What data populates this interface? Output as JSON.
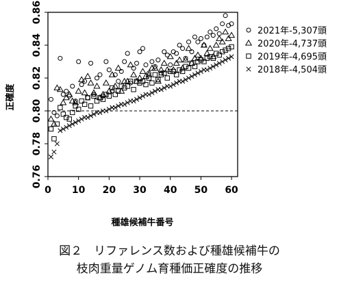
{
  "figure": {
    "caption_line1": "図２　リファレンス数および種雄候補牛の",
    "caption_line2": "枝肉重量ゲノム育種価正確度の推移"
  },
  "chart_data": {
    "type": "scatter",
    "xlabel": "種雄候補牛番号",
    "ylabel": "正確度",
    "xlim": [
      0,
      62
    ],
    "ylim": [
      0.76,
      0.86
    ],
    "xticks": [
      0,
      10,
      20,
      30,
      40,
      50,
      60
    ],
    "yticks": [
      0.76,
      0.78,
      0.8,
      0.82,
      0.84,
      0.86
    ],
    "xtick_labels": [
      "0",
      "10",
      "20",
      "30",
      "40",
      "50",
      "60"
    ],
    "ytick_labels": [
      "0.76",
      "0.78",
      "0.80",
      "0.82",
      "0.84",
      "0.86"
    ],
    "reference_line": {
      "y": 0.8,
      "style": "dashed"
    },
    "grid": false,
    "legend_position": "top-right",
    "series": [
      {
        "name": "2021年-5,307頭",
        "marker": "circle",
        "x": [
          1,
          2,
          3,
          4,
          5,
          6,
          7,
          8,
          9,
          10,
          11,
          12,
          13,
          14,
          15,
          16,
          17,
          18,
          19,
          20,
          21,
          22,
          23,
          24,
          25,
          26,
          27,
          28,
          29,
          30,
          31,
          32,
          33,
          34,
          35,
          36,
          37,
          38,
          39,
          40,
          41,
          42,
          43,
          44,
          45,
          46,
          47,
          48,
          49,
          50,
          51,
          52,
          53,
          54,
          55,
          56,
          57,
          58,
          59,
          60
        ],
        "y": [
          0.807,
          0.799,
          0.797,
          0.832,
          0.81,
          0.812,
          0.809,
          0.815,
          0.806,
          0.83,
          0.816,
          0.818,
          0.808,
          0.829,
          0.81,
          0.82,
          0.822,
          0.809,
          0.83,
          0.825,
          0.812,
          0.822,
          0.818,
          0.824,
          0.83,
          0.835,
          0.817,
          0.826,
          0.829,
          0.836,
          0.838,
          0.828,
          0.823,
          0.83,
          0.827,
          0.831,
          0.823,
          0.836,
          0.834,
          0.828,
          0.836,
          0.835,
          0.84,
          0.838,
          0.832,
          0.842,
          0.836,
          0.845,
          0.842,
          0.844,
          0.84,
          0.845,
          0.848,
          0.846,
          0.85,
          0.847,
          0.853,
          0.858,
          0.852,
          0.853
        ]
      },
      {
        "name": "2020年-4,737頭",
        "marker": "triangle",
        "x": [
          1,
          2,
          3,
          4,
          5,
          6,
          7,
          8,
          9,
          10,
          11,
          12,
          13,
          14,
          15,
          16,
          17,
          18,
          19,
          20,
          21,
          22,
          23,
          24,
          25,
          26,
          27,
          28,
          29,
          30,
          31,
          32,
          33,
          34,
          35,
          36,
          37,
          38,
          39,
          40,
          41,
          42,
          43,
          44,
          45,
          46,
          47,
          48,
          49,
          50,
          51,
          52,
          53,
          54,
          55,
          56,
          57,
          58,
          59,
          60
        ],
        "y": [
          0.795,
          0.792,
          0.814,
          0.813,
          0.805,
          0.808,
          0.81,
          0.806,
          0.805,
          0.812,
          0.819,
          0.811,
          0.821,
          0.817,
          0.811,
          0.815,
          0.808,
          0.81,
          0.817,
          0.812,
          0.822,
          0.815,
          0.826,
          0.812,
          0.818,
          0.818,
          0.828,
          0.822,
          0.818,
          0.82,
          0.824,
          0.821,
          0.822,
          0.826,
          0.826,
          0.818,
          0.825,
          0.829,
          0.825,
          0.833,
          0.825,
          0.829,
          0.831,
          0.826,
          0.831,
          0.838,
          0.829,
          0.832,
          0.834,
          0.832,
          0.84,
          0.835,
          0.838,
          0.833,
          0.84,
          0.844,
          0.842,
          0.848,
          0.844,
          0.846
        ]
      },
      {
        "name": "2019年-4,695頭",
        "marker": "square",
        "x": [
          1,
          2,
          3,
          4,
          5,
          6,
          7,
          8,
          9,
          10,
          11,
          12,
          13,
          14,
          15,
          16,
          17,
          18,
          19,
          20,
          21,
          22,
          23,
          24,
          25,
          26,
          27,
          28,
          29,
          30,
          31,
          32,
          33,
          34,
          35,
          36,
          37,
          38,
          39,
          40,
          41,
          42,
          43,
          44,
          45,
          46,
          47,
          48,
          49,
          50,
          51,
          52,
          53,
          54,
          55,
          56,
          57,
          58,
          59,
          60
        ],
        "y": [
          0.789,
          0.783,
          0.792,
          0.802,
          0.798,
          0.796,
          0.795,
          0.799,
          0.803,
          0.801,
          0.806,
          0.804,
          0.808,
          0.803,
          0.809,
          0.806,
          0.808,
          0.807,
          0.81,
          0.809,
          0.814,
          0.81,
          0.812,
          0.815,
          0.814,
          0.815,
          0.818,
          0.813,
          0.818,
          0.817,
          0.818,
          0.816,
          0.82,
          0.817,
          0.822,
          0.819,
          0.822,
          0.823,
          0.82,
          0.824,
          0.824,
          0.822,
          0.825,
          0.824,
          0.827,
          0.826,
          0.829,
          0.827,
          0.83,
          0.831,
          0.83,
          0.832,
          0.833,
          0.832,
          0.835,
          0.834,
          0.836,
          0.837,
          0.838,
          0.839
        ]
      },
      {
        "name": "2018年-4,504頭",
        "marker": "x",
        "x": [
          1,
          2,
          3,
          4,
          5,
          6,
          7,
          8,
          9,
          10,
          11,
          12,
          13,
          14,
          15,
          16,
          17,
          18,
          19,
          20,
          21,
          22,
          23,
          24,
          25,
          26,
          27,
          28,
          29,
          30,
          31,
          32,
          33,
          34,
          35,
          36,
          37,
          38,
          39,
          40,
          41,
          42,
          43,
          44,
          45,
          46,
          47,
          48,
          49,
          50,
          51,
          52,
          53,
          54,
          55,
          56,
          57,
          58,
          59,
          60
        ],
        "y": [
          0.772,
          0.775,
          0.78,
          0.788,
          0.789,
          0.79,
          0.791,
          0.792,
          0.793,
          0.794,
          0.795,
          0.796,
          0.796,
          0.797,
          0.798,
          0.799,
          0.799,
          0.8,
          0.8,
          0.801,
          0.802,
          0.802,
          0.803,
          0.804,
          0.804,
          0.805,
          0.806,
          0.806,
          0.807,
          0.808,
          0.809,
          0.81,
          0.81,
          0.811,
          0.812,
          0.813,
          0.813,
          0.814,
          0.815,
          0.815,
          0.816,
          0.817,
          0.818,
          0.818,
          0.819,
          0.82,
          0.821,
          0.822,
          0.823,
          0.824,
          0.825,
          0.825,
          0.826,
          0.827,
          0.828,
          0.829,
          0.83,
          0.831,
          0.832,
          0.833
        ]
      }
    ]
  }
}
